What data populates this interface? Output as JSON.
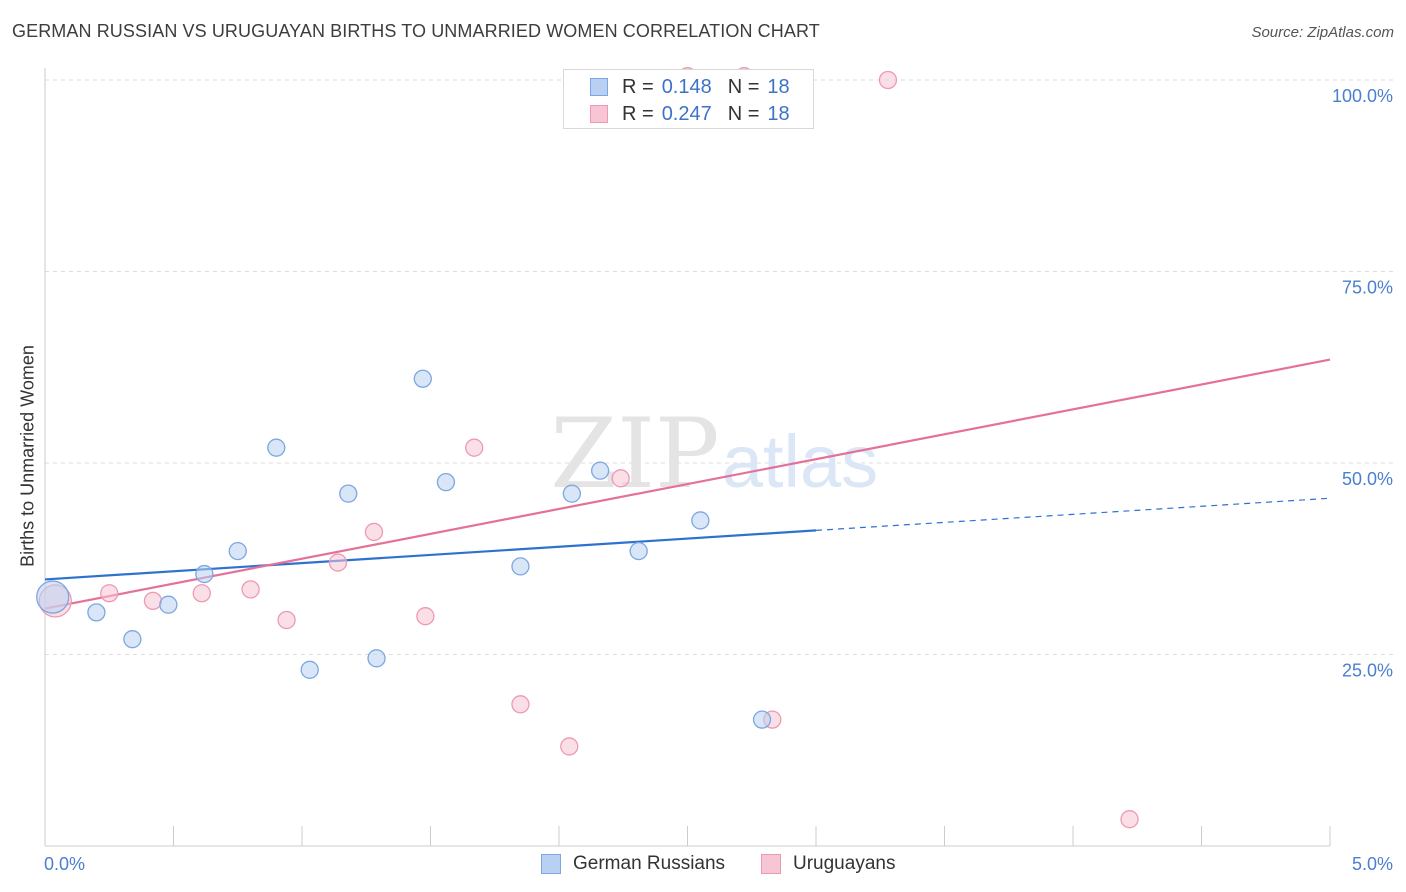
{
  "header": {
    "title": "GERMAN RUSSIAN VS URUGUAYAN BIRTHS TO UNMARRIED WOMEN CORRELATION CHART",
    "source": "Source: ZipAtlas.com"
  },
  "watermark": {
    "zip": "ZIP",
    "atlas": "atlas"
  },
  "legend": {
    "rows": [
      {
        "r_label": "R =",
        "r_value": "0.148",
        "n_label": "N =",
        "n_value": "18"
      },
      {
        "r_label": "R =",
        "r_value": "0.247",
        "n_label": "N =",
        "n_value": "18"
      }
    ]
  },
  "colors": {
    "blue_fill": "#b8d1f3",
    "blue_stroke": "#7da7e0",
    "blue_line": "#2e72cf",
    "pink_fill": "#f8c5d4",
    "pink_stroke": "#ec9ab4",
    "pink_line": "#e4719a",
    "grid": "#dddddd",
    "tick_text": "#4a7fd0"
  },
  "chart_data": {
    "type": "scatter",
    "title": "GERMAN RUSSIAN VS URUGUAYAN BIRTHS TO UNMARRIED WOMEN CORRELATION CHART",
    "xlabel": "",
    "ylabel": "Births to Unmarried Women",
    "xlim": [
      0,
      5
    ],
    "ylim": [
      0,
      100
    ],
    "x_tick_labels": [
      {
        "value": 0,
        "label": "0.0%"
      },
      {
        "value": 5,
        "label": "5.0%"
      }
    ],
    "y_tick_labels": [
      {
        "value": 25,
        "label": "25.0%"
      },
      {
        "value": 50,
        "label": "50.0%"
      },
      {
        "value": 75,
        "label": "75.0%"
      },
      {
        "value": 100,
        "label": "100.0%"
      }
    ],
    "grid": true,
    "series": [
      {
        "name": "German Russians",
        "color": "blue",
        "r": 0.148,
        "n": 18,
        "points": [
          {
            "x": 0.03,
            "y": 32.5,
            "big": true
          },
          {
            "x": 0.2,
            "y": 30.5
          },
          {
            "x": 0.34,
            "y": 27.0
          },
          {
            "x": 0.48,
            "y": 31.5
          },
          {
            "x": 0.62,
            "y": 35.5
          },
          {
            "x": 0.75,
            "y": 38.5
          },
          {
            "x": 0.9,
            "y": 52.0
          },
          {
            "x": 1.03,
            "y": 23.0
          },
          {
            "x": 1.18,
            "y": 46.0
          },
          {
            "x": 1.29,
            "y": 24.5
          },
          {
            "x": 1.47,
            "y": 61.0
          },
          {
            "x": 1.56,
            "y": 47.5
          },
          {
            "x": 1.85,
            "y": 36.5
          },
          {
            "x": 2.05,
            "y": 46.0
          },
          {
            "x": 2.16,
            "y": 49.0
          },
          {
            "x": 2.31,
            "y": 38.5
          },
          {
            "x": 2.55,
            "y": 42.5
          },
          {
            "x": 2.79,
            "y": 16.5
          }
        ],
        "trend": {
          "x0": 0,
          "y0": 34.8,
          "x1": 3.0,
          "y1": 41.2,
          "dash_x1": 5.0,
          "dash_y1": 45.4
        }
      },
      {
        "name": "Uruguayans",
        "color": "pink",
        "r": 0.247,
        "n": 18,
        "points": [
          {
            "x": 0.04,
            "y": 32.0,
            "big": true
          },
          {
            "x": 0.25,
            "y": 33.0
          },
          {
            "x": 0.42,
            "y": 32.0
          },
          {
            "x": 0.61,
            "y": 33.0
          },
          {
            "x": 0.8,
            "y": 33.5
          },
          {
            "x": 0.94,
            "y": 29.5
          },
          {
            "x": 1.14,
            "y": 37.0
          },
          {
            "x": 1.28,
            "y": 41.0
          },
          {
            "x": 1.48,
            "y": 30.0
          },
          {
            "x": 1.67,
            "y": 52.0
          },
          {
            "x": 1.85,
            "y": 18.5
          },
          {
            "x": 2.04,
            "y": 13.0
          },
          {
            "x": 2.24,
            "y": 48.0
          },
          {
            "x": 2.5,
            "y": 100.5
          },
          {
            "x": 2.72,
            "y": 100.5
          },
          {
            "x": 2.83,
            "y": 16.5
          },
          {
            "x": 3.28,
            "y": 100.0
          },
          {
            "x": 4.22,
            "y": 3.5
          }
        ],
        "trend": {
          "x0": 0,
          "y0": 31.0,
          "x1": 5.0,
          "y1": 63.5
        }
      }
    ]
  }
}
